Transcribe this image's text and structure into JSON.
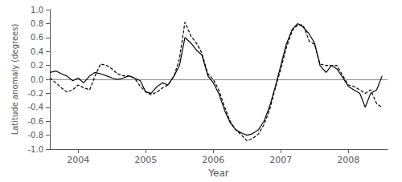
{
  "chart_data": {
    "type": "line",
    "xlabel": "Year",
    "ylabel": "Latitude anomaly (degrees)",
    "xlim": [
      2003.58,
      2008.58
    ],
    "xticks": [
      2004,
      2005,
      2006,
      2007,
      2008
    ],
    "ylim": [
      -1.0,
      1.0
    ],
    "yticks": [
      {
        "value": -1.0,
        "label": "-1.0"
      },
      -0.8,
      -0.6,
      -0.4,
      -0.2,
      {
        "value": 0.0,
        "label": "0.0"
      },
      0.2,
      0.4,
      0.6,
      0.8,
      {
        "value": 1.0,
        "label": "1.0"
      }
    ],
    "grid": false,
    "x": [
      2003.58,
      2003.67,
      2003.75,
      2003.83,
      2003.92,
      2004.0,
      2004.08,
      2004.17,
      2004.25,
      2004.33,
      2004.42,
      2004.5,
      2004.58,
      2004.67,
      2004.75,
      2004.83,
      2004.92,
      2005.0,
      2005.08,
      2005.17,
      2005.25,
      2005.33,
      2005.42,
      2005.5,
      2005.58,
      2005.67,
      2005.75,
      2005.83,
      2005.92,
      2006.0,
      2006.08,
      2006.17,
      2006.25,
      2006.33,
      2006.42,
      2006.5,
      2006.58,
      2006.67,
      2006.75,
      2006.83,
      2006.92,
      2007.0,
      2007.08,
      2007.17,
      2007.25,
      2007.33,
      2007.42,
      2007.5,
      2007.58,
      2007.67,
      2007.75,
      2007.83,
      2007.92,
      2008.0,
      2008.08,
      2008.17,
      2008.25,
      2008.33,
      2008.42,
      2008.5
    ],
    "series": [
      {
        "color": "#000000",
        "line_style": "solid",
        "values": [
          0.1,
          0.12,
          0.08,
          0.05,
          -0.02,
          0.02,
          -0.05,
          0.05,
          0.1,
          0.08,
          0.05,
          0.02,
          0.0,
          0.02,
          0.05,
          0.02,
          -0.02,
          -0.18,
          -0.2,
          -0.1,
          -0.05,
          -0.08,
          0.05,
          0.2,
          0.6,
          0.52,
          0.42,
          0.35,
          0.05,
          -0.05,
          -0.2,
          -0.45,
          -0.62,
          -0.72,
          -0.77,
          -0.8,
          -0.78,
          -0.72,
          -0.6,
          -0.4,
          -0.1,
          0.2,
          0.5,
          0.72,
          0.8,
          0.75,
          0.65,
          0.52,
          0.2,
          0.1,
          0.2,
          0.15,
          0.02,
          -0.1,
          -0.15,
          -0.2,
          -0.4,
          -0.2,
          -0.15,
          0.05
        ]
      },
      {
        "color": "#000000",
        "line_style": "dashed",
        "values": [
          0.02,
          -0.05,
          -0.12,
          -0.18,
          -0.15,
          -0.08,
          -0.12,
          -0.15,
          0.05,
          0.22,
          0.2,
          0.15,
          0.08,
          0.05,
          0.05,
          0.02,
          -0.1,
          -0.18,
          -0.22,
          -0.18,
          -0.12,
          -0.08,
          0.05,
          0.3,
          0.82,
          0.62,
          0.52,
          0.38,
          0.08,
          0.0,
          -0.15,
          -0.4,
          -0.6,
          -0.72,
          -0.8,
          -0.88,
          -0.85,
          -0.78,
          -0.65,
          -0.45,
          -0.12,
          0.15,
          0.45,
          0.7,
          0.78,
          0.78,
          0.55,
          0.5,
          0.22,
          0.2,
          0.2,
          0.2,
          0.05,
          -0.08,
          -0.1,
          -0.15,
          -0.2,
          -0.15,
          -0.35,
          -0.4
        ]
      }
    ],
    "hlines": [
      {
        "y": 0.0,
        "color": "#888888"
      }
    ]
  }
}
